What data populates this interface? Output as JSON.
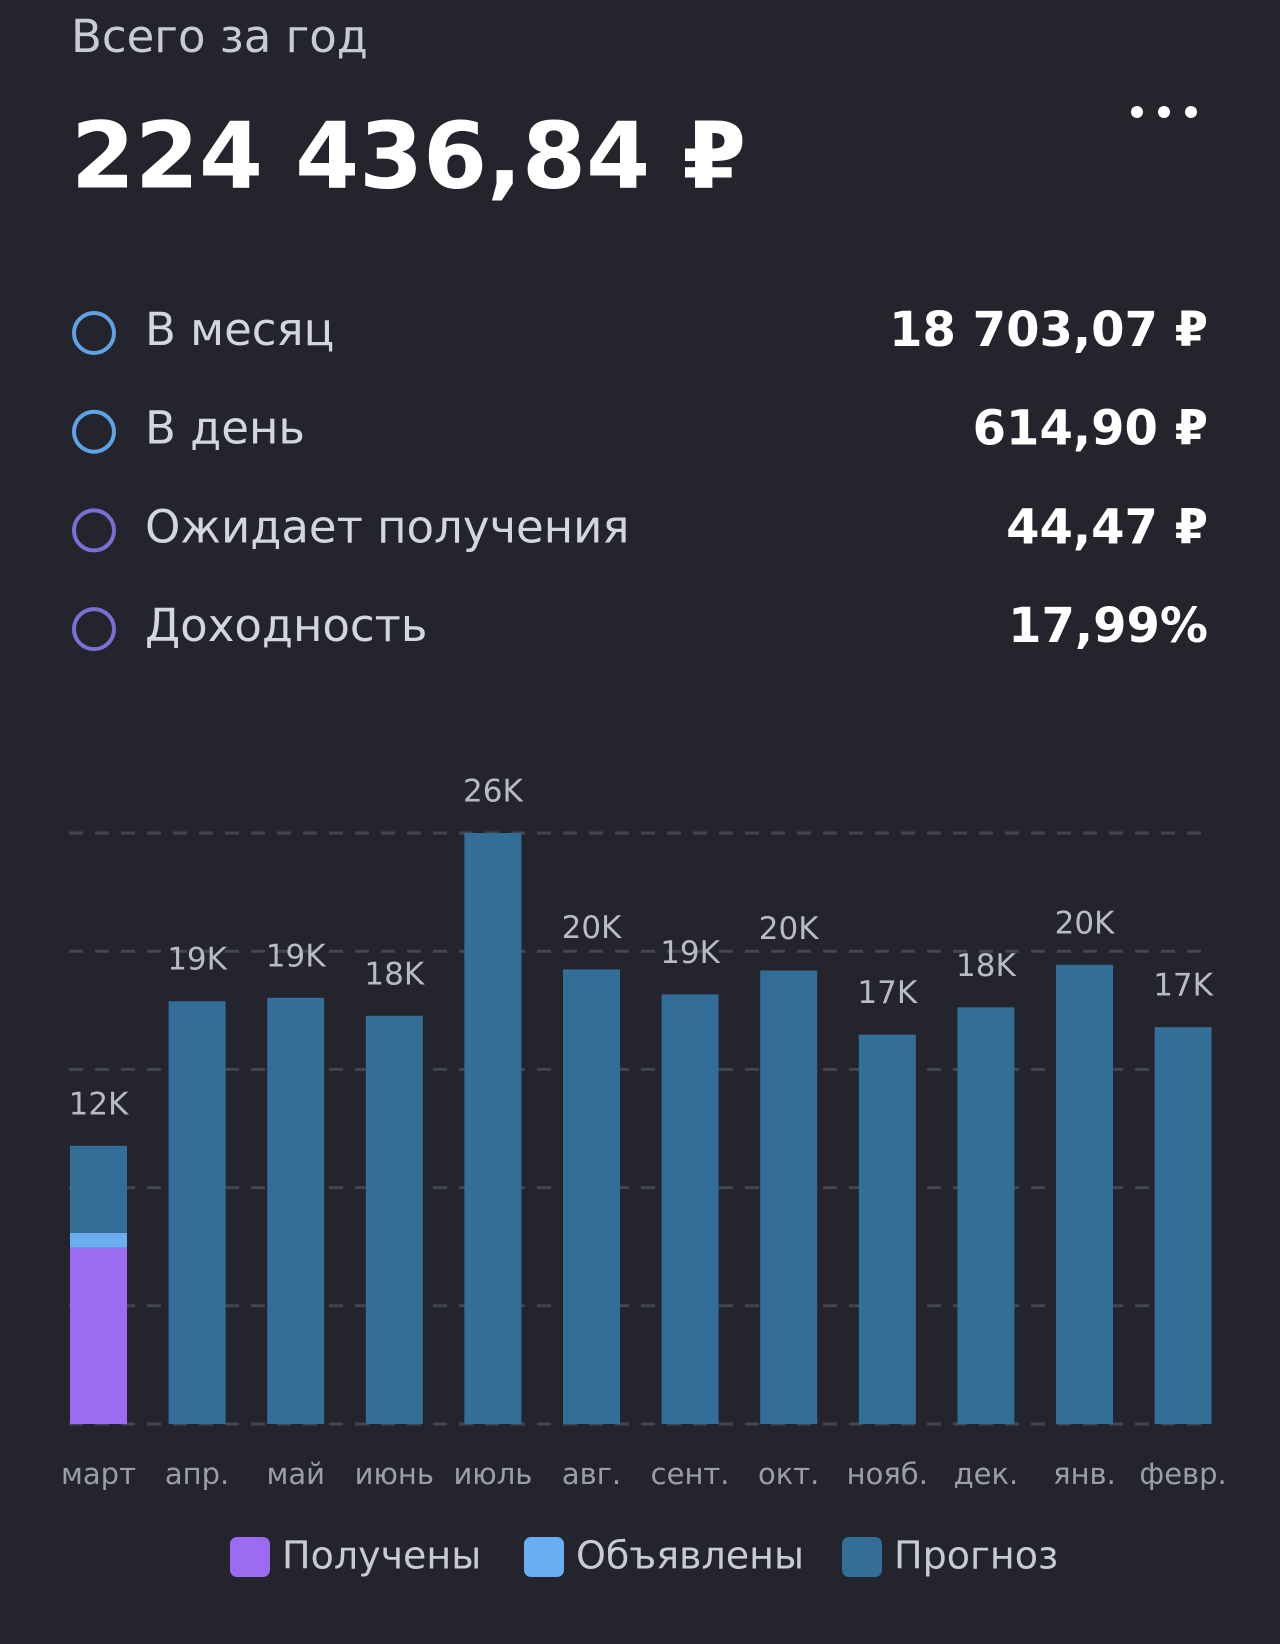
{
  "header": {
    "title": "Всего за год",
    "amount": "224 436,84 ₽"
  },
  "stats": [
    {
      "label": "В месяц",
      "value": "18 703,07 ₽",
      "color": "#5ea3e6"
    },
    {
      "label": "В день",
      "value": "614,90 ₽",
      "color": "#5ea3e6"
    },
    {
      "label": "Ожидает получения",
      "value": "44,47 ₽",
      "color": "#7b6fd6"
    },
    {
      "label": "Доходность",
      "value": "17,99%",
      "color": "#7b6fd6"
    }
  ],
  "chart_data": {
    "type": "bar",
    "stacked": true,
    "grid": true,
    "categories": [
      "март",
      "апр.",
      "май",
      "июнь",
      "июль",
      "авг.",
      "сент.",
      "окт.",
      "нояб.",
      "дек.",
      "янв.",
      "февр."
    ],
    "series": [
      {
        "name": "Получены",
        "color": "#9b6cf0",
        "values": [
          7760,
          0,
          0,
          0,
          0,
          0,
          0,
          0,
          0,
          0,
          0,
          0
        ]
      },
      {
        "name": "Объявлены",
        "color": "#6aaef0",
        "values": [
          650,
          0,
          0,
          0,
          0,
          0,
          0,
          0,
          0,
          0,
          0,
          0
        ]
      },
      {
        "name": "Прогноз",
        "color": "#336e99",
        "values": [
          3830,
          18600,
          18750,
          17960,
          26000,
          20000,
          18900,
          19950,
          17130,
          18330,
          20200,
          17460
        ]
      }
    ],
    "total_labels": [
      "12K",
      "19K",
      "19K",
      "18K",
      "26K",
      "20K",
      "19K",
      "20K",
      "17K",
      "18K",
      "20K",
      "17K"
    ],
    "ylim": [
      0,
      26000
    ],
    "yticks": [
      0,
      5200,
      10400,
      15600,
      20800,
      26000
    ]
  }
}
